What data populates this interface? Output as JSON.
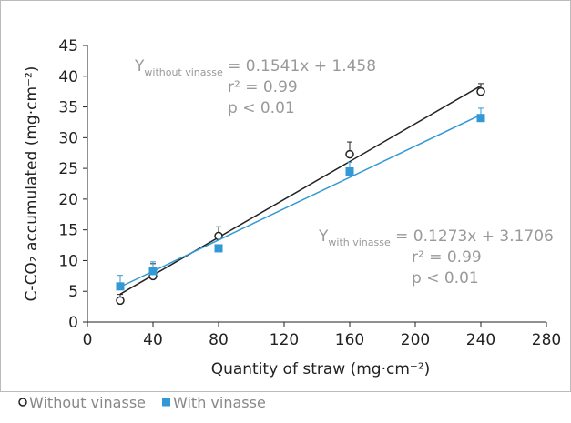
{
  "chart_data": {
    "type": "scatter",
    "x_label": "Quantity of straw (mg·cm⁻²)",
    "y_label": "C-CO₂ accumulated (mg·cm⁻²)",
    "x": [
      20,
      40,
      80,
      160,
      240
    ],
    "series": [
      {
        "name": "Without vinasse",
        "color": "#222222",
        "marker": "circle",
        "values": [
          3.5,
          7.5,
          14,
          27.3,
          37.5
        ],
        "errors": [
          1,
          2,
          1.5,
          2,
          1.3
        ],
        "trend": {
          "slope": 0.1541,
          "intercept": 1.458,
          "symbol": "Y",
          "subscript": "without vinasse",
          "rhs": " = 0.1541x + 1.458",
          "r2": "r² = 0.99",
          "p": "p < 0.01"
        }
      },
      {
        "name": "With vinasse",
        "color": "#3399d4",
        "marker": "square",
        "values": [
          5.8,
          8.3,
          12,
          24.5,
          33.2
        ],
        "errors": [
          1.8,
          1.5,
          0.5,
          1.5,
          1.6
        ],
        "trend": {
          "slope": 0.1273,
          "intercept": 3.1706,
          "symbol": "Y",
          "subscript": "with vinasse",
          "rhs": " = 0.1273x + 3.1706",
          "r2": "r² = 0.99",
          "p": "p < 0.01"
        }
      }
    ],
    "xlim": [
      0,
      280
    ],
    "xticks": [
      0,
      40,
      80,
      120,
      160,
      200,
      240,
      280
    ],
    "ylim": [
      0,
      45
    ],
    "yticks": [
      0,
      5,
      10,
      15,
      20,
      25,
      30,
      35,
      40,
      45
    ]
  }
}
